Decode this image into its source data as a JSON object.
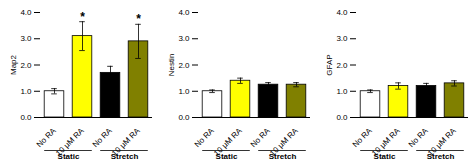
{
  "chart_data": [
    {
      "type": "bar",
      "ylabel": "Map2",
      "categories": [
        "No RA",
        "10 μM RA",
        "No RA",
        "10 μM RA"
      ],
      "groups": [
        "Static",
        "Static",
        "Stretch",
        "Stretch"
      ],
      "values": [
        1.0,
        3.1,
        1.7,
        2.9
      ],
      "errors": [
        0.1,
        0.55,
        0.25,
        0.65
      ],
      "annotations": [
        null,
        "*",
        null,
        "*"
      ],
      "colors": [
        "white",
        "yellow",
        "black",
        "#808000"
      ],
      "ylim": [
        0,
        4
      ],
      "yticks": [
        0,
        1,
        2,
        3,
        4
      ]
    },
    {
      "type": "bar",
      "ylabel": "Nestin",
      "categories": [
        "No RA",
        "10 μM RA",
        "No RA",
        "10 μM RA"
      ],
      "groups": [
        "Static",
        "Static",
        "Stretch",
        "Stretch"
      ],
      "values": [
        1.0,
        1.4,
        1.25,
        1.25
      ],
      "errors": [
        0.05,
        0.1,
        0.08,
        0.08
      ],
      "colors": [
        "white",
        "yellow",
        "black",
        "#808000"
      ],
      "ylim": [
        0,
        4
      ],
      "yticks": [
        0,
        1,
        2,
        3,
        4
      ]
    },
    {
      "type": "bar",
      "ylabel": "GFAP",
      "categories": [
        "No RA",
        "10 μM RA",
        "No RA",
        "10 μM RA"
      ],
      "groups": [
        "Static",
        "Static",
        "Stretch",
        "Stretch"
      ],
      "values": [
        1.0,
        1.2,
        1.2,
        1.3
      ],
      "errors": [
        0.05,
        0.12,
        0.1,
        0.1
      ],
      "colors": [
        "white",
        "yellow",
        "black",
        "#808000"
      ],
      "ylim": [
        0,
        4
      ],
      "yticks": [
        0,
        1,
        2,
        3,
        4
      ]
    }
  ]
}
